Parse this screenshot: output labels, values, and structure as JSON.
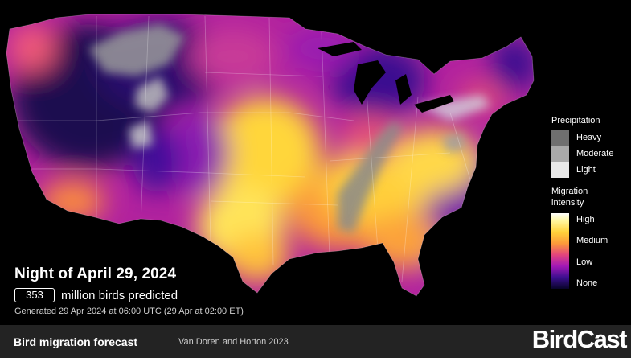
{
  "map": {
    "region": "Contiguous United States"
  },
  "legend": {
    "precip_title": "Precipitation",
    "precip_levels": [
      {
        "label": "Heavy",
        "color": "#6f6f6f"
      },
      {
        "label": "Moderate",
        "color": "#a9a9a9"
      },
      {
        "label": "Light",
        "color": "#e8e8e8"
      }
    ],
    "intensity_title": "Migration intensity",
    "intensity_levels": [
      "High",
      "Medium",
      "Low",
      "None"
    ]
  },
  "summary": {
    "night_title": "Night of April 29, 2024",
    "bird_count": "353",
    "count_suffix": "million birds predicted",
    "generated": "Generated 29 Apr 2024 at 06:00 UTC (29 Apr at 02:00 ET)"
  },
  "footer": {
    "title": "Bird migration forecast",
    "credit": "Van Doren and Horton 2023",
    "brand": "BirdCast"
  },
  "colors": {
    "background": "#000000",
    "footer_bg": "#232323",
    "high": "#ffffff",
    "medium": "#fb9a3a",
    "low": "#3b0f8e"
  }
}
